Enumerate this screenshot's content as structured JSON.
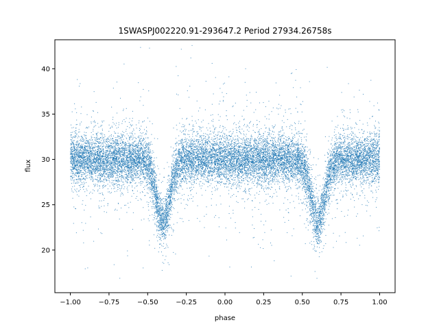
{
  "chart_data": {
    "type": "scatter",
    "title": "1SWASPJ002220.91-293647.2 Period 27934.26758s",
    "xlabel": "phase",
    "ylabel": "flux",
    "xlim": [
      -1.1,
      1.1
    ],
    "ylim": [
      15.3,
      43.2
    ],
    "x_ticks": [
      -1.0,
      -0.75,
      -0.5,
      -0.25,
      0.0,
      0.25,
      0.5,
      0.75,
      1.0
    ],
    "x_tick_labels": [
      "−1.00",
      "−0.75",
      "−0.50",
      "−0.25",
      "0.00",
      "0.25",
      "0.50",
      "0.75",
      "1.00"
    ],
    "y_ticks": [
      20,
      25,
      30,
      35,
      40
    ],
    "y_tick_labels": [
      "20",
      "25",
      "30",
      "35",
      "40"
    ],
    "grid": false,
    "legend": "none",
    "marker_color": "#1f77b4",
    "series": [
      {
        "x_range": [
          -1.0,
          1.0
        ],
        "baseline_flux": 30.0,
        "eclipse_minima": [
          {
            "phase": -0.4,
            "flux": 23.0
          },
          {
            "phase": 0.6,
            "flux": 23.0
          }
        ],
        "flux_range": [
          16.5,
          42.7
        ]
      }
    ]
  }
}
